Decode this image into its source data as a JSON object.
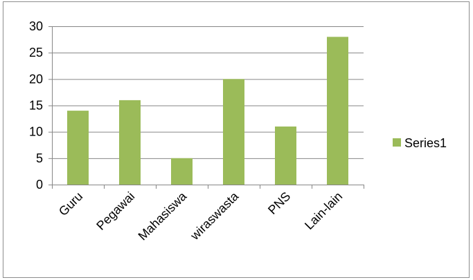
{
  "chart_data": {
    "type": "bar",
    "categories": [
      "Guru",
      "Pegawai",
      "Mahasiswa",
      "wiraswasta",
      "PNS",
      "Lain-lain"
    ],
    "series": [
      {
        "name": "Series1",
        "values": [
          14,
          16,
          5,
          20,
          11,
          28
        ],
        "color": "#9BBB59"
      }
    ],
    "ylim": [
      0,
      30
    ],
    "yticks": [
      0,
      5,
      10,
      15,
      20,
      25,
      30
    ],
    "grid": true,
    "gridColor": "#868686",
    "legend": "right"
  }
}
